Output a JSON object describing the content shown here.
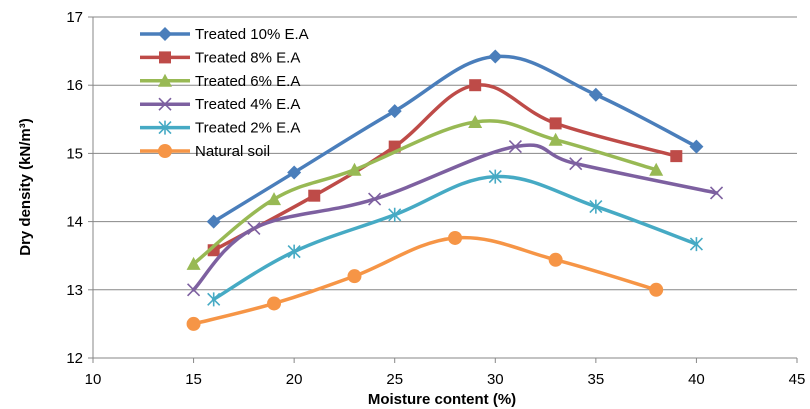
{
  "chart_data": {
    "type": "line",
    "title": "",
    "xlabel": "Moisture content (%)",
    "ylabel": "Dry density (kN/m³)",
    "xlim": [
      10,
      45
    ],
    "ylim": [
      12,
      17
    ],
    "xticks": [
      "10",
      "15",
      "20",
      "25",
      "30",
      "35",
      "40",
      "45"
    ],
    "yticks": [
      "12",
      "13",
      "14",
      "15",
      "16",
      "17"
    ],
    "grid": "horizontal",
    "legend_position": "top-left",
    "series": [
      {
        "name": "Treated 10% E.A",
        "color": "#4a7ebb",
        "marker": "diamond",
        "points": [
          [
            16,
            14.0
          ],
          [
            20,
            14.72
          ],
          [
            25,
            15.62
          ],
          [
            30,
            16.42
          ],
          [
            35,
            15.86
          ],
          [
            40,
            15.1
          ]
        ]
      },
      {
        "name": "Treated 8% E.A",
        "color": "#be4b48",
        "marker": "square",
        "points": [
          [
            16,
            13.58
          ],
          [
            21,
            14.38
          ],
          [
            25,
            15.1
          ],
          [
            29,
            16.0
          ],
          [
            33,
            15.44
          ],
          [
            39,
            14.96
          ]
        ]
      },
      {
        "name": "Treated 6% E.A",
        "color": "#98b954",
        "marker": "triangle",
        "points": [
          [
            15,
            13.38
          ],
          [
            19,
            14.33
          ],
          [
            23,
            14.76
          ],
          [
            29,
            15.46
          ],
          [
            33,
            15.2
          ],
          [
            38,
            14.76
          ]
        ]
      },
      {
        "name": "Treated 4% E.A",
        "color": "#7d60a0",
        "marker": "x",
        "points": [
          [
            15,
            13.0
          ],
          [
            18,
            13.9
          ],
          [
            24,
            14.33
          ],
          [
            31,
            15.1
          ],
          [
            34,
            14.85
          ],
          [
            41,
            14.42
          ]
        ]
      },
      {
        "name": "Treated 2% E.A",
        "color": "#46aac4",
        "marker": "star",
        "points": [
          [
            16,
            12.86
          ],
          [
            20,
            13.56
          ],
          [
            25,
            14.1
          ],
          [
            30,
            14.66
          ],
          [
            35,
            14.22
          ],
          [
            40,
            13.67
          ]
        ]
      },
      {
        "name": "Natural soil",
        "color": "#f69546",
        "marker": "circle",
        "points": [
          [
            15,
            12.5
          ],
          [
            19,
            12.8
          ],
          [
            23,
            13.2
          ],
          [
            28,
            13.76
          ],
          [
            33,
            13.44
          ],
          [
            38,
            13.0
          ]
        ]
      }
    ]
  }
}
